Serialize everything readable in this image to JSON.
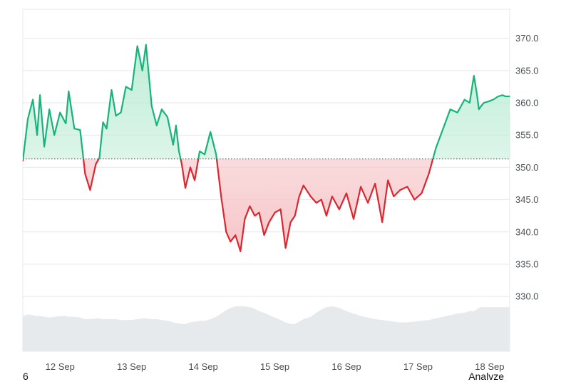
{
  "chart_data": {
    "type": "area",
    "baseline": 351.3,
    "ylim": [
      321.5,
      374.5
    ],
    "y_ticks": [
      {
        "value": 370.0,
        "label": "370.0"
      },
      {
        "value": 365.0,
        "label": "365.0"
      },
      {
        "value": 360.0,
        "label": "360.0"
      },
      {
        "value": 355.0,
        "label": "355.0"
      },
      {
        "value": 350.0,
        "label": "350.0"
      },
      {
        "value": 345.0,
        "label": "345.0"
      },
      {
        "value": 340.0,
        "label": "340.0"
      },
      {
        "value": 335.0,
        "label": "335.0"
      },
      {
        "value": 330.0,
        "label": "330.0"
      }
    ],
    "x_ticks": [
      {
        "value": 1.0,
        "label": "12 Sep"
      },
      {
        "value": 2.0,
        "label": "13 Sep"
      },
      {
        "value": 3.0,
        "label": "14 Sep"
      },
      {
        "value": 4.0,
        "label": "15 Sep"
      },
      {
        "value": 5.0,
        "label": "16 Sep"
      },
      {
        "value": 6.0,
        "label": "17 Sep"
      },
      {
        "value": 7.0,
        "label": "18 Sep"
      }
    ],
    "xlim": [
      0.48,
      7.28
    ],
    "x": [
      0.48,
      0.55,
      0.62,
      0.68,
      0.72,
      0.78,
      0.85,
      0.92,
      1.0,
      1.08,
      1.12,
      1.2,
      1.28,
      1.35,
      1.42,
      1.5,
      1.55,
      1.6,
      1.65,
      1.72,
      1.78,
      1.85,
      1.92,
      2.0,
      2.08,
      2.15,
      2.2,
      2.28,
      2.35,
      2.42,
      2.5,
      2.58,
      2.62,
      2.66,
      2.7,
      2.75,
      2.82,
      2.88,
      2.95,
      3.02,
      3.1,
      3.18,
      3.25,
      3.32,
      3.38,
      3.45,
      3.52,
      3.58,
      3.65,
      3.72,
      3.78,
      3.85,
      3.92,
      4.0,
      4.08,
      4.15,
      4.22,
      4.28,
      4.34,
      4.4,
      4.5,
      4.58,
      4.65,
      4.72,
      4.8,
      4.9,
      5.0,
      5.1,
      5.2,
      5.3,
      5.4,
      5.5,
      5.58,
      5.66,
      5.75,
      5.85,
      5.95,
      6.05,
      6.15,
      6.25,
      6.35,
      6.45,
      6.55,
      6.65,
      6.72,
      6.78,
      6.82,
      6.85,
      6.88,
      6.92,
      6.98,
      7.05,
      7.12,
      7.18,
      7.22,
      7.28
    ],
    "values": [
      351.0,
      357.5,
      360.5,
      355.0,
      361.2,
      353.2,
      359.0,
      355.0,
      358.5,
      356.8,
      361.8,
      356.0,
      355.8,
      349.0,
      346.5,
      350.5,
      351.5,
      357.0,
      356.0,
      362.0,
      358.0,
      358.5,
      362.5,
      362.0,
      368.8,
      365.0,
      369.0,
      359.5,
      356.5,
      359.0,
      357.8,
      353.5,
      356.5,
      352.5,
      350.5,
      346.8,
      350.0,
      348.0,
      352.5,
      352.0,
      355.5,
      352.0,
      345.5,
      340.0,
      338.5,
      339.5,
      337.0,
      342.0,
      344.0,
      342.5,
      343.0,
      339.5,
      341.5,
      343.0,
      343.5,
      337.5,
      341.5,
      342.5,
      345.5,
      347.2,
      345.5,
      344.5,
      345.0,
      342.5,
      345.5,
      343.5,
      346.0,
      342.0,
      347.0,
      344.5,
      347.5,
      341.5,
      348.0,
      345.5,
      346.5,
      347.0,
      345.0,
      346.0,
      349.0,
      353.0,
      356.0,
      359.0,
      358.5,
      360.5,
      360.0,
      364.2,
      361.5,
      359.0,
      359.5,
      360.0,
      360.2,
      360.5,
      361.0,
      361.2,
      361.0,
      361.0
    ],
    "volume": [
      4.4,
      4.6,
      4.5,
      4.4,
      4.4,
      4.3,
      4.2,
      4.3,
      4.4,
      4.4,
      4.3,
      4.3,
      4.2,
      4.0,
      4.0,
      4.1,
      4.1,
      4.0,
      4.0,
      4.0,
      4.0,
      3.9,
      3.9,
      3.9,
      4.0,
      4.1,
      4.1,
      4.0,
      4.0,
      3.9,
      3.8,
      3.6,
      3.5,
      3.5,
      3.4,
      3.4,
      3.6,
      3.7,
      3.8,
      3.8,
      4.0,
      4.3,
      4.7,
      5.1,
      5.4,
      5.6,
      5.6,
      5.6,
      5.5,
      5.3,
      5.0,
      4.8,
      4.5,
      4.2,
      3.9,
      3.6,
      3.4,
      3.4,
      3.7,
      4.0,
      4.3,
      4.8,
      5.2,
      5.5,
      5.6,
      5.4,
      5.0,
      4.7,
      4.4,
      4.2,
      4.0,
      3.9,
      3.8,
      3.7,
      3.6,
      3.6,
      3.7,
      3.8,
      3.9,
      4.1,
      4.3,
      4.5,
      4.7,
      4.8,
      5.0,
      5.0,
      5.2,
      5.4,
      5.5,
      5.5,
      5.5,
      5.5,
      5.5,
      5.5,
      5.5,
      5.5
    ],
    "colors": {
      "up": "#16b37a",
      "down": "#dc2630",
      "up_fill_top": "#b8ebd3",
      "down_fill_bottom": "#f6c3c6",
      "volume": "#e7eaed",
      "grid": "#e6e8eb",
      "baseline": "#333333"
    },
    "grid": true
  },
  "footer": {
    "left_text": "6",
    "right_text": "Analvze"
  }
}
